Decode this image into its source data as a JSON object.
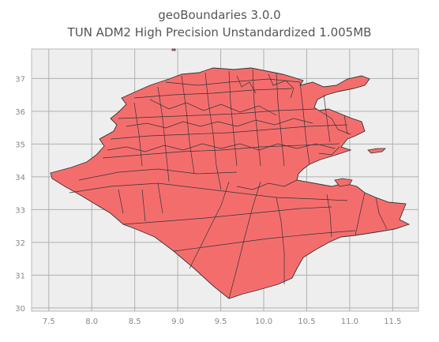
{
  "title": {
    "line1": "geoBoundaries 3.0.0",
    "line2": "TUN ADM2 High Precision Unstandardized 1.005MB"
  },
  "colors": {
    "plot_bg": "#eeeeee",
    "grid": "#b0b0b0",
    "fill": "#f46d6d",
    "stroke": "#333333",
    "tick_text": "#888888"
  },
  "chart_data": {
    "type": "map",
    "x_ticks": [
      "7.5",
      "8.0",
      "8.5",
      "9.0",
      "9.5",
      "10.0",
      "10.5",
      "11.0",
      "11.5"
    ],
    "y_ticks": [
      "37",
      "36",
      "35",
      "34",
      "33",
      "32",
      "31",
      "30"
    ],
    "xlim": [
      7.3,
      11.8
    ],
    "ylim": [
      29.9,
      37.9
    ],
    "grid": true
  }
}
